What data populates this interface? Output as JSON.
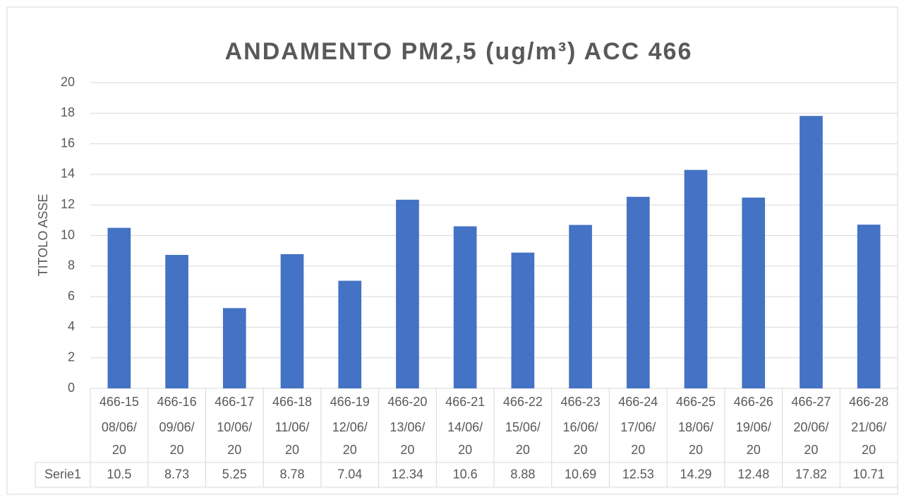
{
  "chart_data": {
    "type": "bar",
    "title": "ANDAMENTO PM2,5 (ug/m³) ACC 466",
    "y_label": "TITOLO ASSE",
    "categories": [
      "466-15",
      "466-16",
      "466-17",
      "466-18",
      "466-19",
      "466-20",
      "466-21",
      "466-22",
      "466-23",
      "466-24",
      "466-25",
      "466-26",
      "466-27",
      "466-28"
    ],
    "dates": [
      "08/06/20",
      "09/06/20",
      "10/06/20",
      "11/06/20",
      "12/06/20",
      "13/06/20",
      "14/06/20",
      "15/06/20",
      "16/06/20",
      "17/06/20",
      "18/06/20",
      "19/06/20",
      "20/06/20",
      "21/06/20"
    ],
    "series": [
      {
        "name": "Serie1",
        "color": "#4472c4",
        "values": [
          10.5,
          8.73,
          5.25,
          8.78,
          7.04,
          12.34,
          10.6,
          8.88,
          10.69,
          12.53,
          14.29,
          12.48,
          17.82,
          10.71
        ]
      }
    ],
    "ylim": [
      0,
      20
    ],
    "yticks": [
      0,
      2,
      4,
      6,
      8,
      10,
      12,
      14,
      16,
      18,
      20
    ],
    "grid": true
  }
}
